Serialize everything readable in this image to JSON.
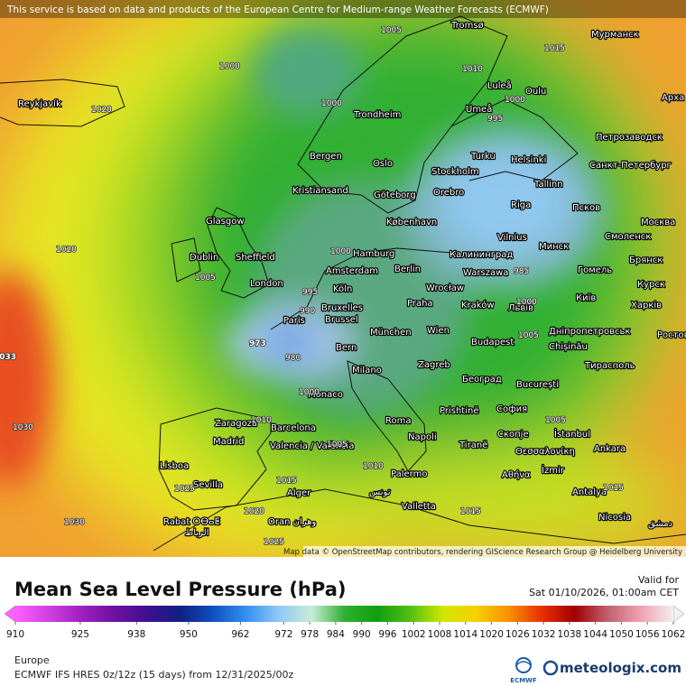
{
  "header": {
    "attribution": "This service is based on data and products of the European Centre for Medium-range Weather Forecasts (ECMWF)"
  },
  "map": {
    "attribution": "Map data © OpenStreetMap contributors, rendering GIScience Research Group @ Heidelberg University",
    "places": [
      "Reykjavík",
      "Tromsø",
      "Мурманск",
      "Luleå",
      "Oulu",
      "Umeå",
      "Trondheim",
      "Арха",
      "Петрозаводск",
      "Bergen",
      "Oslo",
      "Turku",
      "Helsinki",
      "Санкт-Петербург",
      "Stockholm",
      "Tallinn",
      "Orebro",
      "Kristiansand",
      "Göteborg",
      "Glasgow",
      "København",
      "Riga",
      "Псков",
      "Москва",
      "Dublin",
      "Sheffield",
      "Hamburg",
      "Калининград",
      "Vilnius",
      "Минск",
      "Смоленск",
      "Брянск",
      "Amsterdam",
      "Berlin",
      "Warszawa",
      "Гомель",
      "London",
      "Köln",
      "Wrocław",
      "Курск",
      "Bruxelles",
      "Brussel",
      "Praha",
      "Kraków",
      "Львів",
      "Київ",
      "Харків",
      "Paris",
      "München",
      "Wien",
      "Дніпропетровськ",
      "Bern",
      "Budapest",
      "Chișinău",
      "Ростов",
      "Milano",
      "Zagreb",
      "Београд",
      "București",
      "Тирасполь",
      "Monaco",
      "Prishtinë",
      "София",
      "Zaragoza",
      "Barcelona",
      "Roma",
      "Скопје",
      "İstanbul",
      "Madrid",
      "Napoli",
      "Tiranë",
      "Θεσσαλονίκη",
      "Ankara",
      "Valencia / València",
      "Lisboa",
      "Αθήνα",
      "İzmir",
      "Palermo",
      "Sevilla",
      "Alger",
      "تونس",
      "Antalya",
      "Valletta",
      "Rabat ⵔⴱⴰⵟ",
      "الرباط",
      "Oran وهران",
      "Nicosia",
      "دمشق"
    ],
    "pressure_labels": [
      1005,
      1000,
      1010,
      1015,
      1020,
      1000,
      995,
      1000,
      1020,
      1000,
      1005,
      995,
      990,
      985,
      973,
      980,
      1000,
      1033,
      1030,
      1025,
      1030,
      1025,
      1020,
      1015,
      1015,
      1010,
      1005,
      1005,
      1000,
      1005,
      1010,
      1015
    ]
  },
  "legend": {
    "title": "Mean Sea Level Pressure (hPa)",
    "valid_label": "Valid for",
    "valid_time": "Sat 01/10/2026, 01:00am CET",
    "colorbar": {
      "ticks": [
        910,
        925,
        938,
        950,
        962,
        972,
        978,
        984,
        990,
        996,
        1002,
        1008,
        1014,
        1020,
        1026,
        1032,
        1038,
        1044,
        1050,
        1056,
        1062
      ],
      "colors": [
        "#ff60ff",
        "#d040e0",
        "#a020c0",
        "#7010a0",
        "#401090",
        "#102080",
        "#1050c0",
        "#3090f0",
        "#90c8f8",
        "#c8ecd8",
        "#30b030",
        "#10a010",
        "#50c010",
        "#d0e800",
        "#f8d000",
        "#f89000",
        "#e83000",
        "#a00000",
        "#c06070",
        "#f0a0b0",
        "#f0f0f0"
      ]
    },
    "region": "Europe",
    "model": "ECMWF IFS HRES 0z/12z (15 days) from  12/31/2025/00z",
    "logo": "ECMWF",
    "brand": "meteologix.com"
  }
}
